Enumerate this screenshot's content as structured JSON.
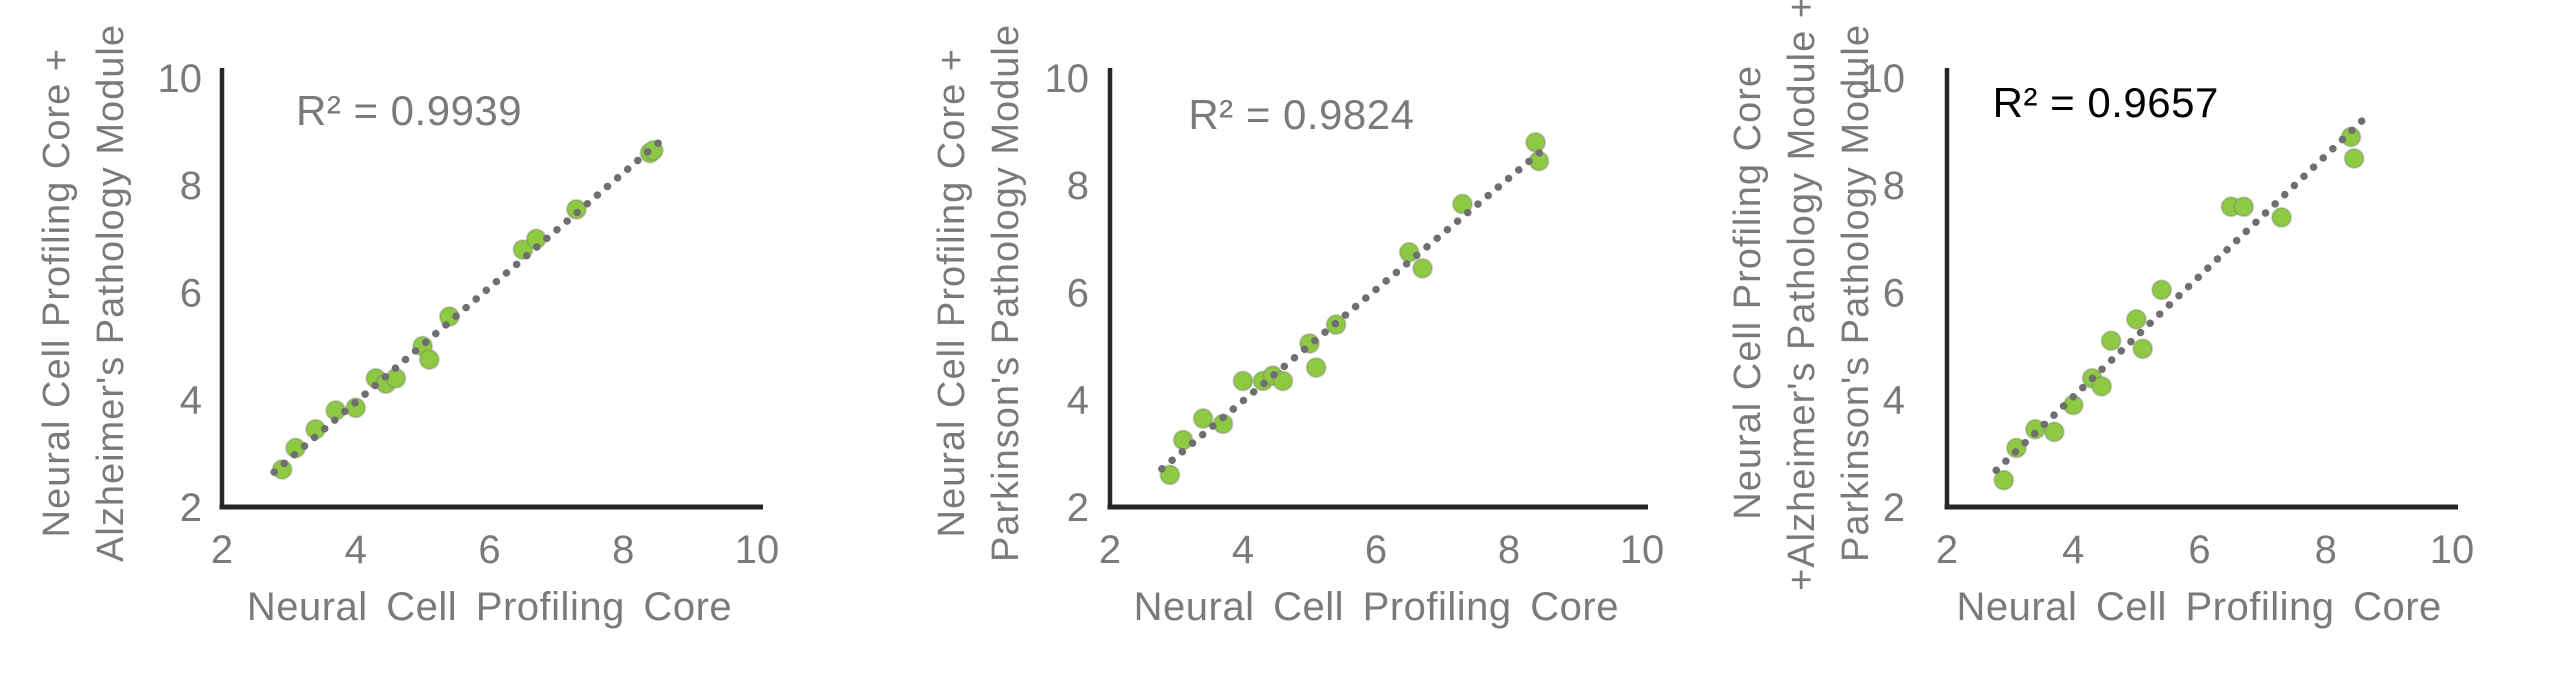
{
  "page": {
    "background_color": "#ffffff"
  },
  "chart_data": [
    {
      "type": "scatter",
      "r2_label": "R² = 0.9939",
      "r2_color": "#7a7a7a",
      "xlabel": "Neural Cell Profiling Core",
      "ylabel_lines": [
        "Neural Cell Profiling Core +",
        "Alzheimer's Pathology Module"
      ],
      "xlim": [
        2,
        10
      ],
      "ylim": [
        2,
        10
      ],
      "x_ticks": [
        2,
        4,
        6,
        8,
        10
      ],
      "y_ticks": [
        2,
        4,
        6,
        8,
        10
      ],
      "x": [
        2.9,
        3.1,
        3.4,
        3.7,
        4.0,
        4.3,
        4.45,
        4.6,
        5.0,
        5.1,
        5.4,
        6.5,
        6.7,
        7.3,
        8.4,
        8.45
      ],
      "y": [
        2.7,
        3.1,
        3.45,
        3.8,
        3.85,
        4.4,
        4.3,
        4.4,
        5.0,
        4.75,
        5.55,
        6.8,
        7.0,
        7.55,
        8.6,
        8.65
      ],
      "trendline": "linear-dotted",
      "grid": false,
      "legend": "none",
      "marker_color": "#8ec944",
      "trendline_color": "#6f6f6f",
      "axis_color": "#262626",
      "label_color": "#7a7a7a"
    },
    {
      "type": "scatter",
      "r2_label": "R² = 0.9824",
      "r2_color": "#7a7a7a",
      "xlabel": "Neural Cell Profiling Core",
      "ylabel_lines": [
        "Neural Cell Profiling Core +",
        "Parkinson's Pathology Module"
      ],
      "xlim": [
        2,
        10
      ],
      "ylim": [
        2,
        10
      ],
      "x_ticks": [
        2,
        4,
        6,
        8,
        10
      ],
      "y_ticks": [
        2,
        4,
        6,
        8,
        10
      ],
      "x": [
        2.9,
        3.1,
        3.4,
        3.7,
        4.0,
        4.3,
        4.45,
        4.6,
        5.0,
        5.1,
        5.4,
        6.5,
        6.7,
        7.3,
        8.4,
        8.45
      ],
      "y": [
        2.6,
        3.25,
        3.65,
        3.55,
        4.35,
        4.35,
        4.45,
        4.35,
        5.05,
        4.6,
        5.4,
        6.75,
        6.45,
        7.65,
        8.8,
        8.45
      ],
      "trendline": "linear-dotted",
      "grid": false,
      "legend": "none",
      "marker_color": "#8ec944",
      "trendline_color": "#6f6f6f",
      "axis_color": "#262626",
      "label_color": "#7a7a7a"
    },
    {
      "type": "scatter",
      "r2_label": "R² = 0.9657",
      "r2_color": "#000000",
      "xlabel": "Neural Cell Profiling Core",
      "ylabel_lines": [
        "Neural Cell Profiling Core",
        "+Alzheimer's Pathology Module +",
        "Parkinson's Pathology Module"
      ],
      "xlim": [
        2,
        10
      ],
      "ylim": [
        2,
        10
      ],
      "x_ticks": [
        2,
        4,
        6,
        8,
        10
      ],
      "y_ticks": [
        2,
        4,
        6,
        8,
        10
      ],
      "x": [
        2.9,
        3.1,
        3.4,
        3.7,
        4.0,
        4.3,
        4.45,
        4.6,
        5.0,
        5.1,
        5.4,
        6.5,
        6.7,
        7.3,
        8.4,
        8.45
      ],
      "y": [
        2.5,
        3.1,
        3.45,
        3.4,
        3.9,
        4.4,
        4.25,
        5.1,
        5.5,
        4.95,
        6.05,
        7.6,
        7.6,
        7.4,
        8.9,
        8.5
      ],
      "trendline": "linear-dotted",
      "grid": false,
      "legend": "none",
      "marker_color": "#8ec944",
      "trendline_color": "#6f6f6f",
      "axis_color": "#262626",
      "label_color": "#7a7a7a"
    }
  ]
}
